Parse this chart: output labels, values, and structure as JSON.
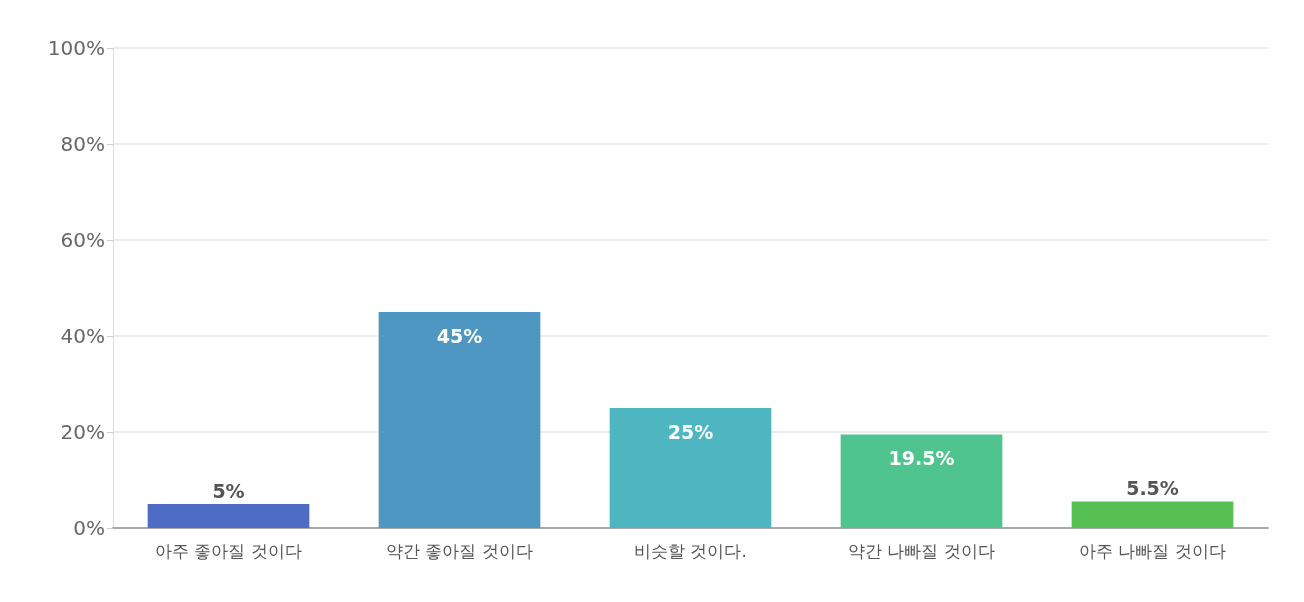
{
  "chart_data": {
    "type": "bar",
    "categories": [
      "아주 좋아질 것이다",
      "약간 좋아질 것이다",
      "비슷할 것이다.",
      "약간 나빠질 것이다",
      "아주 나빠질 것이다"
    ],
    "values": [
      5,
      45,
      25,
      19.5,
      5.5
    ],
    "colors": [
      "#4f6cc4",
      "#4e97c2",
      "#4db6c0",
      "#4fc48f",
      "#56c152"
    ],
    "value_labels": [
      "5%",
      "45%",
      "25%",
      "19.5%",
      "5.5%"
    ],
    "ylim": [
      0,
      100
    ],
    "yticks": [
      {
        "value": 0,
        "label": "0%"
      },
      {
        "value": 20,
        "label": "20%"
      },
      {
        "value": 40,
        "label": "40%"
      },
      {
        "value": 60,
        "label": "60%"
      },
      {
        "value": 80,
        "label": "80%"
      },
      {
        "value": 100,
        "label": "100%"
      }
    ],
    "grid": "y"
  }
}
